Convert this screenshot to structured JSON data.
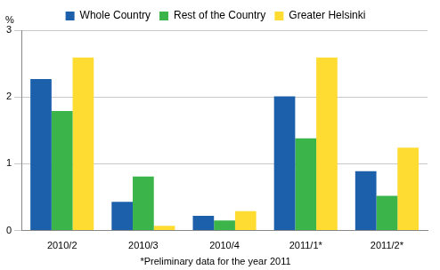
{
  "chart_data": {
    "type": "bar",
    "y_label": "%",
    "annotation": "*Preliminary data for the year 2011",
    "categories": [
      "2010/2",
      "2010/3",
      "2010/4",
      "2011/1*",
      "2011/2*"
    ],
    "series": [
      {
        "name": "Whole Country",
        "color": "#1c5fab",
        "values": [
          2.27,
          0.43,
          0.22,
          2.01,
          0.89
        ]
      },
      {
        "name": "Rest of the Country",
        "color": "#3bb449",
        "values": [
          1.79,
          0.81,
          0.15,
          1.38,
          0.52
        ]
      },
      {
        "name": "Greater Helsinki",
        "color": "#ffdc32",
        "values": [
          2.59,
          0.07,
          0.29,
          2.59,
          1.24
        ]
      }
    ],
    "ylim": [
      0,
      3
    ],
    "yticks": [
      0,
      1,
      2,
      3
    ],
    "grid": true,
    "legend": "top"
  }
}
